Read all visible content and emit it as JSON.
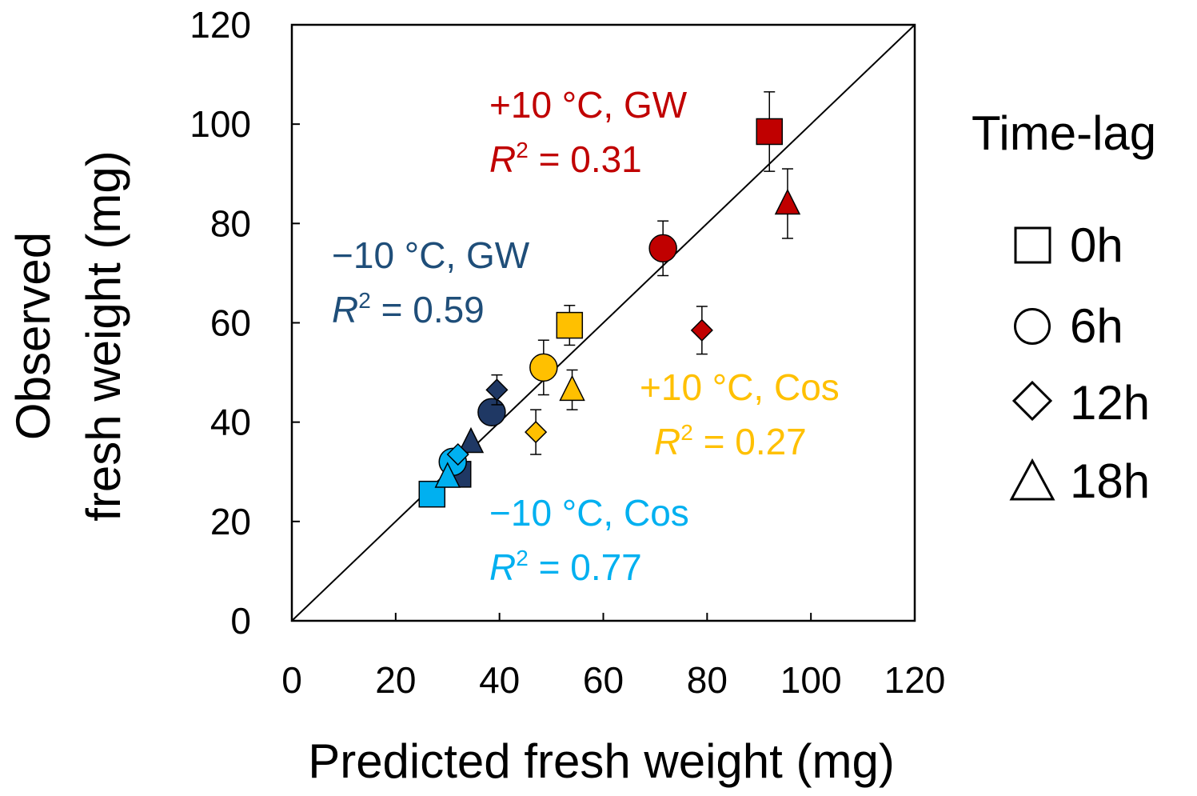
{
  "chart_data": {
    "type": "scatter",
    "xlabel": "Predicted fresh weight (mg)",
    "ylabel_line1": "Observed",
    "ylabel_line2": "fresh weight (mg)",
    "xlim": [
      0,
      120
    ],
    "ylim": [
      0,
      120
    ],
    "xticks": [
      "0",
      "20",
      "40",
      "60",
      "80",
      "100",
      "120"
    ],
    "yticks": [
      "0",
      "20",
      "40",
      "60",
      "80",
      "100",
      "120"
    ],
    "identity_line": true,
    "legend": {
      "title": "Time-lag",
      "entries": [
        {
          "marker": "square",
          "label": "0h"
        },
        {
          "marker": "circle",
          "label": "6h"
        },
        {
          "marker": "diamond",
          "label": "12h"
        },
        {
          "marker": "triangle",
          "label": "18h"
        }
      ]
    },
    "series": [
      {
        "name": "+10 °C, GW",
        "r2_label": "= 0.31",
        "color": "#c00000",
        "points": [
          {
            "lag": "0h",
            "marker": "square",
            "x": 92,
            "y": 98.5,
            "err": 8
          },
          {
            "lag": "6h",
            "marker": "circle",
            "x": 71.5,
            "y": 75,
            "err": 5.5
          },
          {
            "lag": "12h",
            "marker": "diamond",
            "x": 79,
            "y": 58.5,
            "err": 4.8
          },
          {
            "lag": "18h",
            "marker": "triangle",
            "x": 95.5,
            "y": 84,
            "err": 7
          }
        ]
      },
      {
        "name": "−10 °C, GW",
        "r2_label": "= 0.59",
        "color": "#1f3864",
        "points": [
          {
            "lag": "0h",
            "marker": "square",
            "x": 32,
            "y": 29.5,
            "err": 0
          },
          {
            "lag": "6h",
            "marker": "circle",
            "x": 38.5,
            "y": 42,
            "err": 2.5
          },
          {
            "lag": "12h",
            "marker": "diamond",
            "x": 39.5,
            "y": 46.5,
            "err": 3
          },
          {
            "lag": "18h",
            "marker": "triangle",
            "x": 34.5,
            "y": 36,
            "err": 0
          }
        ]
      },
      {
        "name": "+10 °C, Cos",
        "r2_label": "= 0.27",
        "color": "#ffc000",
        "points": [
          {
            "lag": "0h",
            "marker": "square",
            "x": 53.5,
            "y": 59.5,
            "err": 4
          },
          {
            "lag": "6h",
            "marker": "circle",
            "x": 48.5,
            "y": 51,
            "err": 5.5
          },
          {
            "lag": "12h",
            "marker": "diamond",
            "x": 47,
            "y": 38,
            "err": 4.5
          },
          {
            "lag": "18h",
            "marker": "triangle",
            "x": 54,
            "y": 46.5,
            "err": 4
          }
        ]
      },
      {
        "name": "−10 °C, Cos",
        "r2_label": "= 0.77",
        "color": "#00b0f0",
        "points": [
          {
            "lag": "0h",
            "marker": "square",
            "x": 27,
            "y": 25.5,
            "err": 0
          },
          {
            "lag": "6h",
            "marker": "circle",
            "x": 31,
            "y": 32,
            "err": 2.5
          },
          {
            "lag": "12h",
            "marker": "diamond",
            "x": 32,
            "y": 33.5,
            "err": 0
          },
          {
            "lag": "18h",
            "marker": "triangle",
            "x": 30,
            "y": 29,
            "err": 0
          }
        ]
      }
    ]
  }
}
